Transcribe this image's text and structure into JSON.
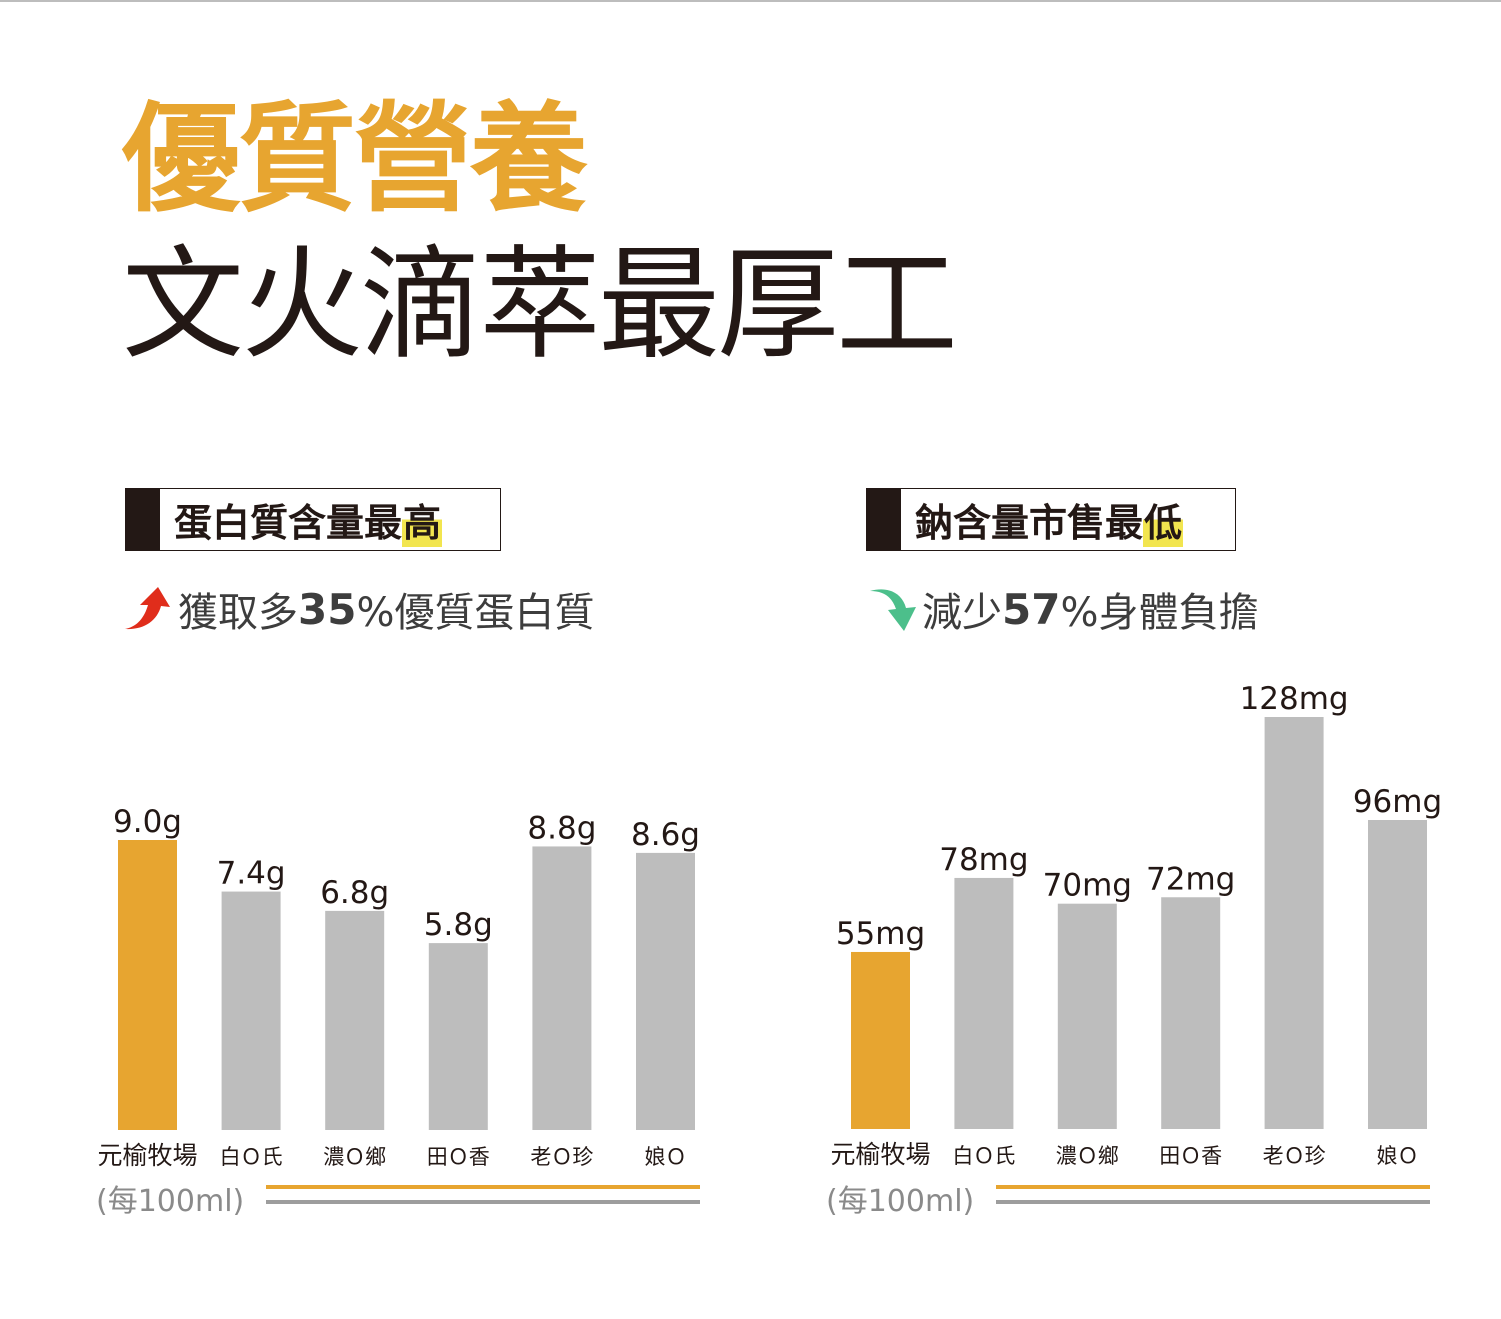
{
  "headline": "優質營養",
  "subline": "文火滴萃最厚工",
  "colors": {
    "accent": "#e7a530",
    "neutral": "#bdbdbd",
    "text": "#231815",
    "up_arrow": "#e02d1b",
    "down_arrow": "#4cbf8b",
    "highlight": "#f2e54f"
  },
  "panels": [
    {
      "label_prefix": "蛋白質含量最",
      "label_highlight": "高",
      "claim_prefix": "獲取多",
      "claim_number": "35",
      "claim_suffix": "%優質蛋白質",
      "claim_icon": "red-up-arrow-icon",
      "unit_note": "(每100ml)"
    },
    {
      "label_prefix": "鈉含量市售最",
      "label_highlight": "低",
      "claim_prefix": "減少",
      "claim_number": "57",
      "claim_suffix": "%身體負擔",
      "claim_icon": "green-down-arrow-icon",
      "unit_note": "(每100ml)"
    }
  ],
  "chart_data": [
    {
      "type": "bar",
      "categories": [
        "元榆牧場",
        "白Ｏ氏",
        "濃Ｏ鄉",
        "田Ｏ香",
        "老Ｏ珍",
        "娘Ｏ"
      ],
      "values": [
        9.0,
        7.4,
        6.8,
        5.8,
        8.8,
        8.6
      ],
      "value_labels": [
        "9.0g",
        "7.4g",
        "6.8g",
        "5.8g",
        "8.8g",
        "8.6g"
      ],
      "highlight_index": 0,
      "ylim": [
        0,
        9.0
      ]
    },
    {
      "type": "bar",
      "categories": [
        "元榆牧場",
        "白Ｏ氏",
        "濃Ｏ鄉",
        "田Ｏ香",
        "老Ｏ珍",
        "娘Ｏ"
      ],
      "values": [
        55,
        78,
        70,
        72,
        128,
        96
      ],
      "value_labels": [
        "55mg",
        "78mg",
        "70mg",
        "72mg",
        "128mg",
        "96mg"
      ],
      "highlight_index": 0,
      "ylim": [
        0,
        128
      ]
    }
  ]
}
